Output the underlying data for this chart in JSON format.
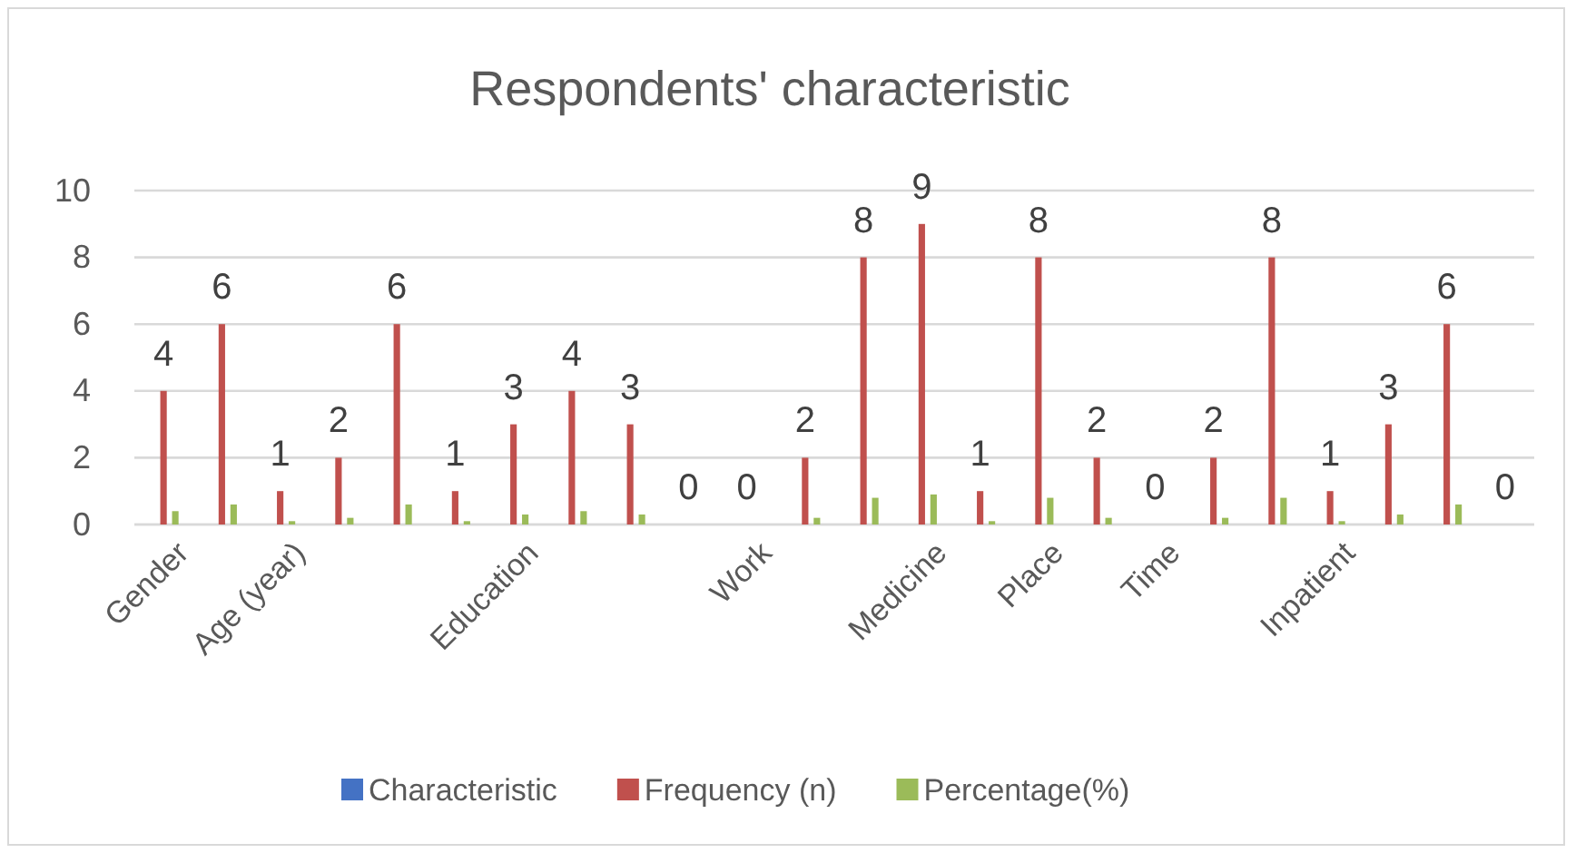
{
  "chart_data": {
    "type": "bar",
    "title": "Respondents' characteristic",
    "categories": [
      "Gender",
      null,
      "Age (year)",
      null,
      null,
      null,
      "Education",
      null,
      null,
      null,
      "Work",
      null,
      null,
      "Medicine",
      null,
      "Place",
      null,
      "Time",
      null,
      null,
      "Inpatient",
      null,
      null,
      null
    ],
    "series": [
      {
        "name": "Characteristic",
        "color": "#4472c4",
        "values": [
          null,
          null,
          null,
          null,
          null,
          null,
          null,
          null,
          null,
          null,
          null,
          null,
          null,
          null,
          null,
          null,
          null,
          null,
          null,
          null,
          null,
          null,
          null,
          null
        ]
      },
      {
        "name": "Frequency (n)",
        "color": "#c0504d",
        "values": [
          4,
          6,
          1,
          2,
          6,
          1,
          3,
          4,
          3,
          0,
          0,
          2,
          8,
          9,
          1,
          8,
          2,
          0,
          2,
          8,
          1,
          3,
          6,
          0
        ],
        "value_labels": [
          "4",
          "6",
          "1",
          "2",
          "6",
          "1",
          "3",
          "4",
          "3",
          "0",
          "0",
          "2",
          "8",
          "9",
          "1",
          "8",
          "2",
          "0",
          "2",
          "8",
          "1",
          "3",
          "6",
          "0"
        ]
      },
      {
        "name": "Percentage(%)",
        "color": "#9bbb59",
        "values": [
          0.4,
          0.6,
          0.1,
          0.2,
          0.6,
          0.1,
          0.3,
          0.4,
          0.3,
          0,
          0,
          0.2,
          0.8,
          0.9,
          0.1,
          0.8,
          0.2,
          0,
          0.2,
          0.8,
          0.1,
          0.3,
          0.6,
          0
        ]
      }
    ],
    "ylim": [
      0,
      10
    ],
    "yticks": [
      0,
      2,
      4,
      6,
      8,
      10
    ],
    "grid": "y",
    "legend": "bottom"
  }
}
